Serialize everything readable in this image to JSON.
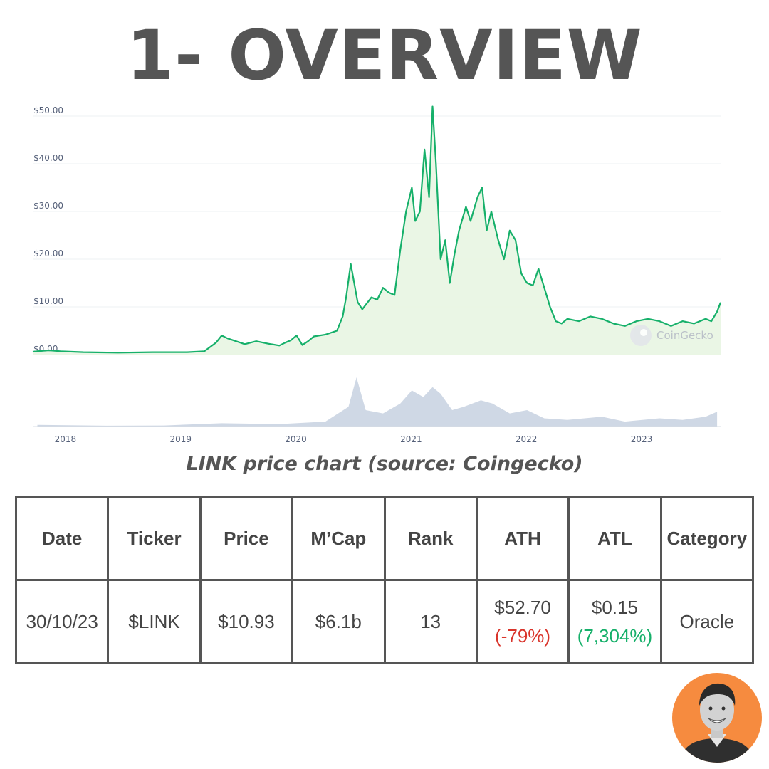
{
  "title": "1- OVERVIEW",
  "caption": "LINK price chart (source: Coingecko)",
  "watermark": "CoinGecko",
  "colors": {
    "line": "#16b06a",
    "area": "#e8f5e2",
    "volume": "#c7d1e0",
    "negative": "#d9342b",
    "positive": "#16b06a",
    "avatar_bg": "#f68b3f"
  },
  "chart_data": {
    "type": "area",
    "title": "",
    "xlabel": "",
    "ylabel": "",
    "ylim": [
      0,
      50
    ],
    "yticks": [
      "$50.00",
      "$40.00",
      "$30.00",
      "$20.00",
      "$10.00",
      "$0.00"
    ],
    "ytick_values": [
      50,
      40,
      30,
      20,
      10,
      0
    ],
    "xticks": [
      "2018",
      "2019",
      "2020",
      "2021",
      "2022",
      "2023"
    ],
    "xtick_values": [
      2018,
      2019,
      2020,
      2021,
      2022,
      2023
    ],
    "xlim": [
      2017.86,
      2023.83
    ],
    "grid": true,
    "series": [
      {
        "x": [
          2017.86,
          2017.95,
          2018.0,
          2018.1,
          2018.3,
          2018.6,
          2018.9,
          2019.2,
          2019.35,
          2019.45,
          2019.5,
          2019.55,
          2019.7,
          2019.8,
          2019.9,
          2020.0,
          2020.05,
          2020.1,
          2020.15,
          2020.2,
          2020.25,
          2020.3,
          2020.4,
          2020.5,
          2020.55,
          2020.58,
          2020.62,
          2020.68,
          2020.72,
          2020.8,
          2020.85,
          2020.9,
          2020.95,
          2021.0,
          2021.05,
          2021.1,
          2021.15,
          2021.18,
          2021.22,
          2021.26,
          2021.3,
          2021.33,
          2021.36,
          2021.4,
          2021.44,
          2021.48,
          2021.52,
          2021.56,
          2021.62,
          2021.66,
          2021.72,
          2021.76,
          2021.8,
          2021.84,
          2021.9,
          2021.95,
          2022.0,
          2022.05,
          2022.1,
          2022.15,
          2022.2,
          2022.25,
          2022.3,
          2022.35,
          2022.4,
          2022.45,
          2022.5,
          2022.6,
          2022.7,
          2022.8,
          2022.9,
          2023.0,
          2023.1,
          2023.2,
          2023.3,
          2023.4,
          2023.5,
          2023.6,
          2023.7,
          2023.75,
          2023.8,
          2023.83
        ],
        "y": [
          0.6,
          0.8,
          0.9,
          0.7,
          0.5,
          0.4,
          0.5,
          0.5,
          0.7,
          2.5,
          4.0,
          3.4,
          2.2,
          2.8,
          2.3,
          1.9,
          2.5,
          3.0,
          4.0,
          2.0,
          2.8,
          3.8,
          4.2,
          5.0,
          8.0,
          12.0,
          19.0,
          11.0,
          9.5,
          12.0,
          11.5,
          14.0,
          13.0,
          12.5,
          22.0,
          30.0,
          35.0,
          28.0,
          30.0,
          43.0,
          33.0,
          52.0,
          40.0,
          20.0,
          24.0,
          15.0,
          21.0,
          26.0,
          31.0,
          28.0,
          33.0,
          35.0,
          26.0,
          30.0,
          24.0,
          20.0,
          26.0,
          24.0,
          17.0,
          15.0,
          14.5,
          18.0,
          14.0,
          10.0,
          7.0,
          6.5,
          7.5,
          7.0,
          8.0,
          7.5,
          6.5,
          6.0,
          7.0,
          7.5,
          7.0,
          6.0,
          7.0,
          6.5,
          7.5,
          7.0,
          9.0,
          10.93
        ]
      }
    ],
    "volume": {
      "x": [
        2017.9,
        2018.5,
        2019.0,
        2019.5,
        2020.0,
        2020.4,
        2020.6,
        2020.67,
        2020.75,
        2020.9,
        2021.05,
        2021.15,
        2021.25,
        2021.33,
        2021.4,
        2021.5,
        2021.6,
        2021.75,
        2021.85,
        2022.0,
        2022.15,
        2022.3,
        2022.5,
        2022.8,
        2023.0,
        2023.3,
        2023.5,
        2023.7,
        2023.8
      ],
      "y": [
        1,
        0.5,
        0.6,
        2,
        1.5,
        3,
        12,
        30,
        10,
        8,
        14,
        22,
        18,
        24,
        20,
        10,
        12,
        16,
        14,
        8,
        10,
        5,
        4,
        6,
        3,
        5,
        4,
        6,
        9
      ]
    }
  },
  "table": {
    "headers": [
      "Date",
      "Ticker",
      "Price",
      "M’Cap",
      "Rank",
      "ATH",
      "ATL",
      "Category"
    ],
    "row": {
      "date": "30/10/23",
      "ticker": "$LINK",
      "price": "$10.93",
      "mcap": "$6.1b",
      "rank": "13",
      "ath": "$52.70",
      "ath_change": "(-79%)",
      "atl": "$0.15",
      "atl_change": "(7,304%)",
      "category": "Oracle"
    }
  },
  "avatar": {
    "icon": "person-avatar"
  }
}
